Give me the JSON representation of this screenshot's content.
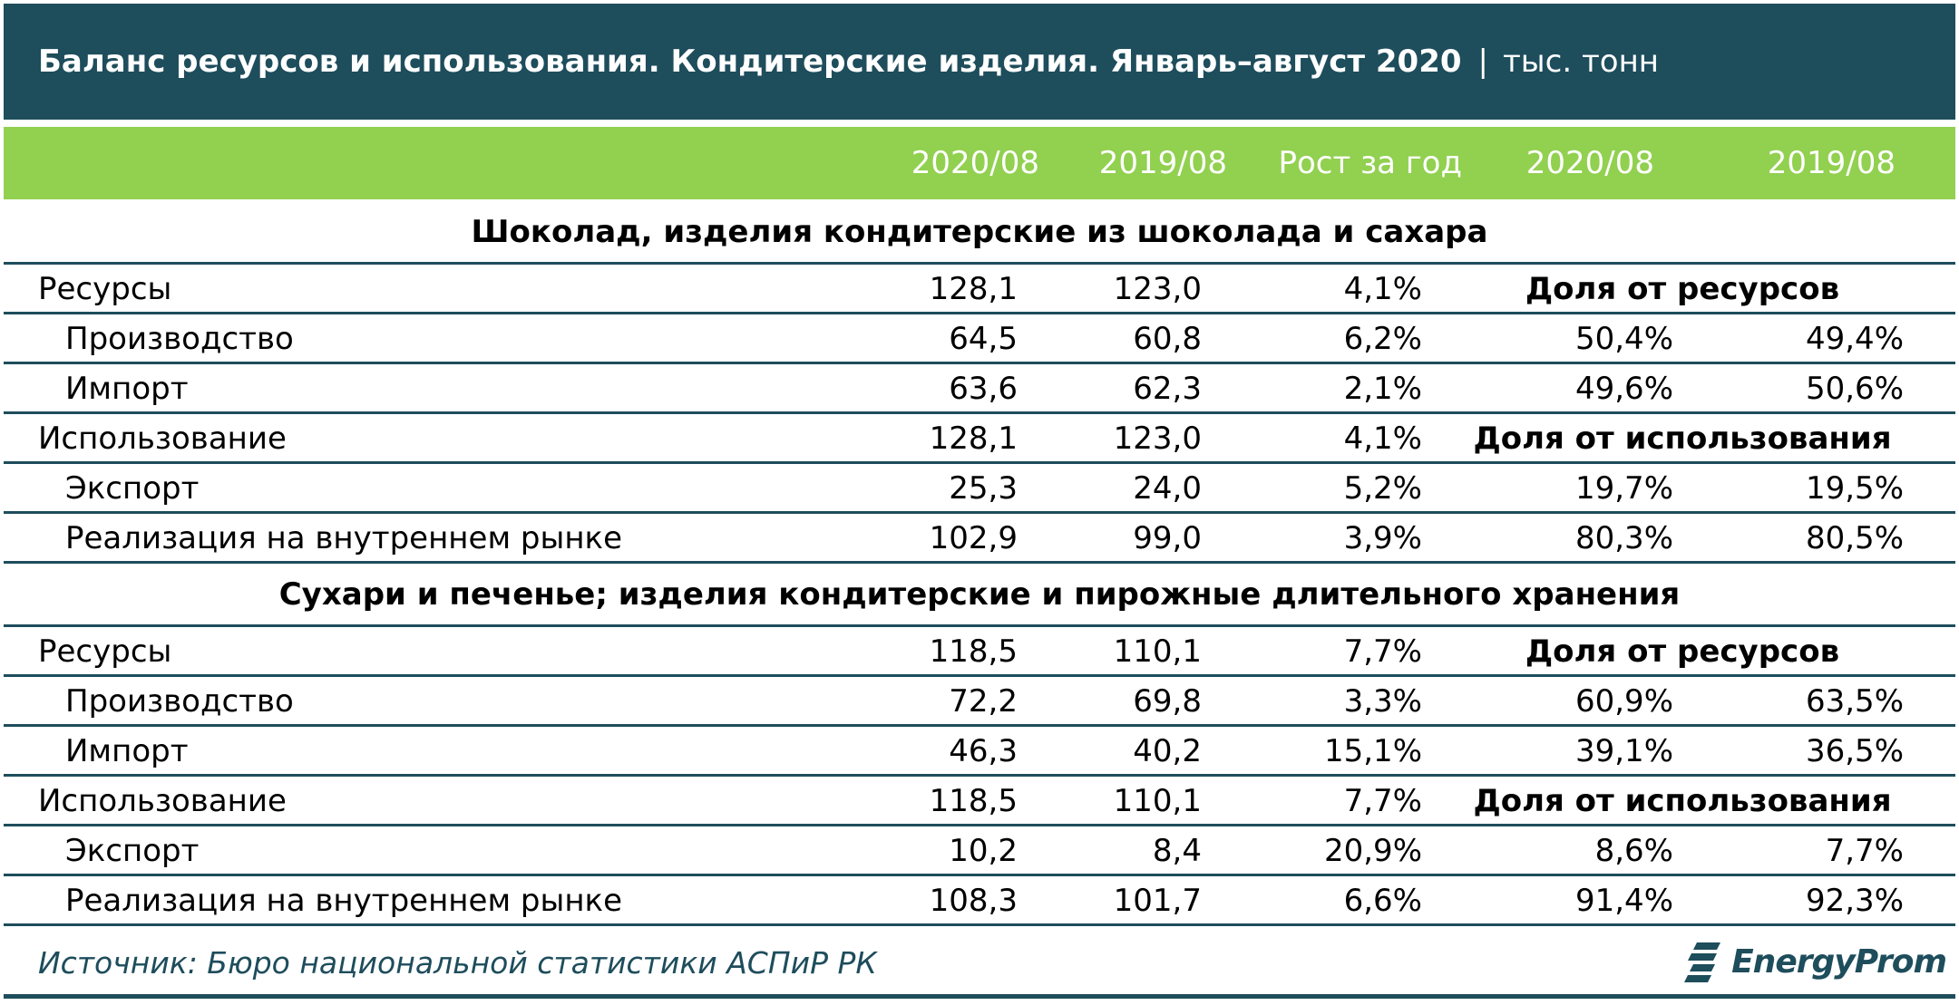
{
  "title": {
    "main": "Баланс ресурсов и использования. Кондитерские изделия. Январь–август 2020",
    "separator": "|",
    "unit": "тыс. тонн"
  },
  "header": {
    "col1": "2020/08",
    "col2": "2019/08",
    "col3": "Рост за год",
    "col4": "2020/08",
    "col5": "2019/08"
  },
  "sections": [
    {
      "title": "Шоколад, изделия кондитерские из шоколада и сахара",
      "rows": [
        {
          "label": "Ресурсы",
          "v1": "128,1",
          "v2": "123,0",
          "v3": "4,1%",
          "share_header": "Доля от ресурсов"
        },
        {
          "label": "Производство",
          "v1": "64,5",
          "v2": "60,8",
          "v3": "6,2%",
          "v4": "50,4%",
          "v5": "49,4%"
        },
        {
          "label": "Импорт",
          "v1": "63,6",
          "v2": "62,3",
          "v3": "2,1%",
          "v4": "49,6%",
          "v5": "50,6%"
        },
        {
          "label": "Использование",
          "v1": "128,1",
          "v2": "123,0",
          "v3": "4,1%",
          "share_header": "Доля от использования"
        },
        {
          "label": "Экспорт",
          "v1": "25,3",
          "v2": "24,0",
          "v3": "5,2%",
          "v4": "19,7%",
          "v5": "19,5%"
        },
        {
          "label": "Реализация на внутреннем рынке",
          "v1": "102,9",
          "v2": "99,0",
          "v3": "3,9%",
          "v4": "80,3%",
          "v5": "80,5%"
        }
      ]
    },
    {
      "title": "Сухари и печенье; изделия кондитерские и пирожные длительного хранения",
      "rows": [
        {
          "label": "Ресурсы",
          "v1": "118,5",
          "v2": "110,1",
          "v3": "7,7%",
          "share_header": "Доля от ресурсов"
        },
        {
          "label": "Производство",
          "v1": "72,2",
          "v2": "69,8",
          "v3": "3,3%",
          "v4": "60,9%",
          "v5": "63,5%"
        },
        {
          "label": "Импорт",
          "v1": "46,3",
          "v2": "40,2",
          "v3": "15,1%",
          "v4": "39,1%",
          "v5": "36,5%"
        },
        {
          "label": "Использование",
          "v1": "118,5",
          "v2": "110,1",
          "v3": "7,7%",
          "share_header": "Доля от использования"
        },
        {
          "label": "Экспорт",
          "v1": "10,2",
          "v2": "8,4",
          "v3": "20,9%",
          "v4": "8,6%",
          "v5": "7,7%"
        },
        {
          "label": "Реализация на внутреннем рынке",
          "v1": "108,3",
          "v2": "101,7",
          "v3": "6,6%",
          "v4": "91,4%",
          "v5": "92,3%"
        }
      ]
    }
  ],
  "footer": {
    "source": "Источник: Бюро национальной статистики АСПиР РК",
    "logo_text": "EnergyProm",
    "logo_icon": "energyprom-logo-icon"
  },
  "colors": {
    "title_bg": "#1e4d5c",
    "header_bg": "#92d050",
    "rule": "#1e4d5c"
  }
}
